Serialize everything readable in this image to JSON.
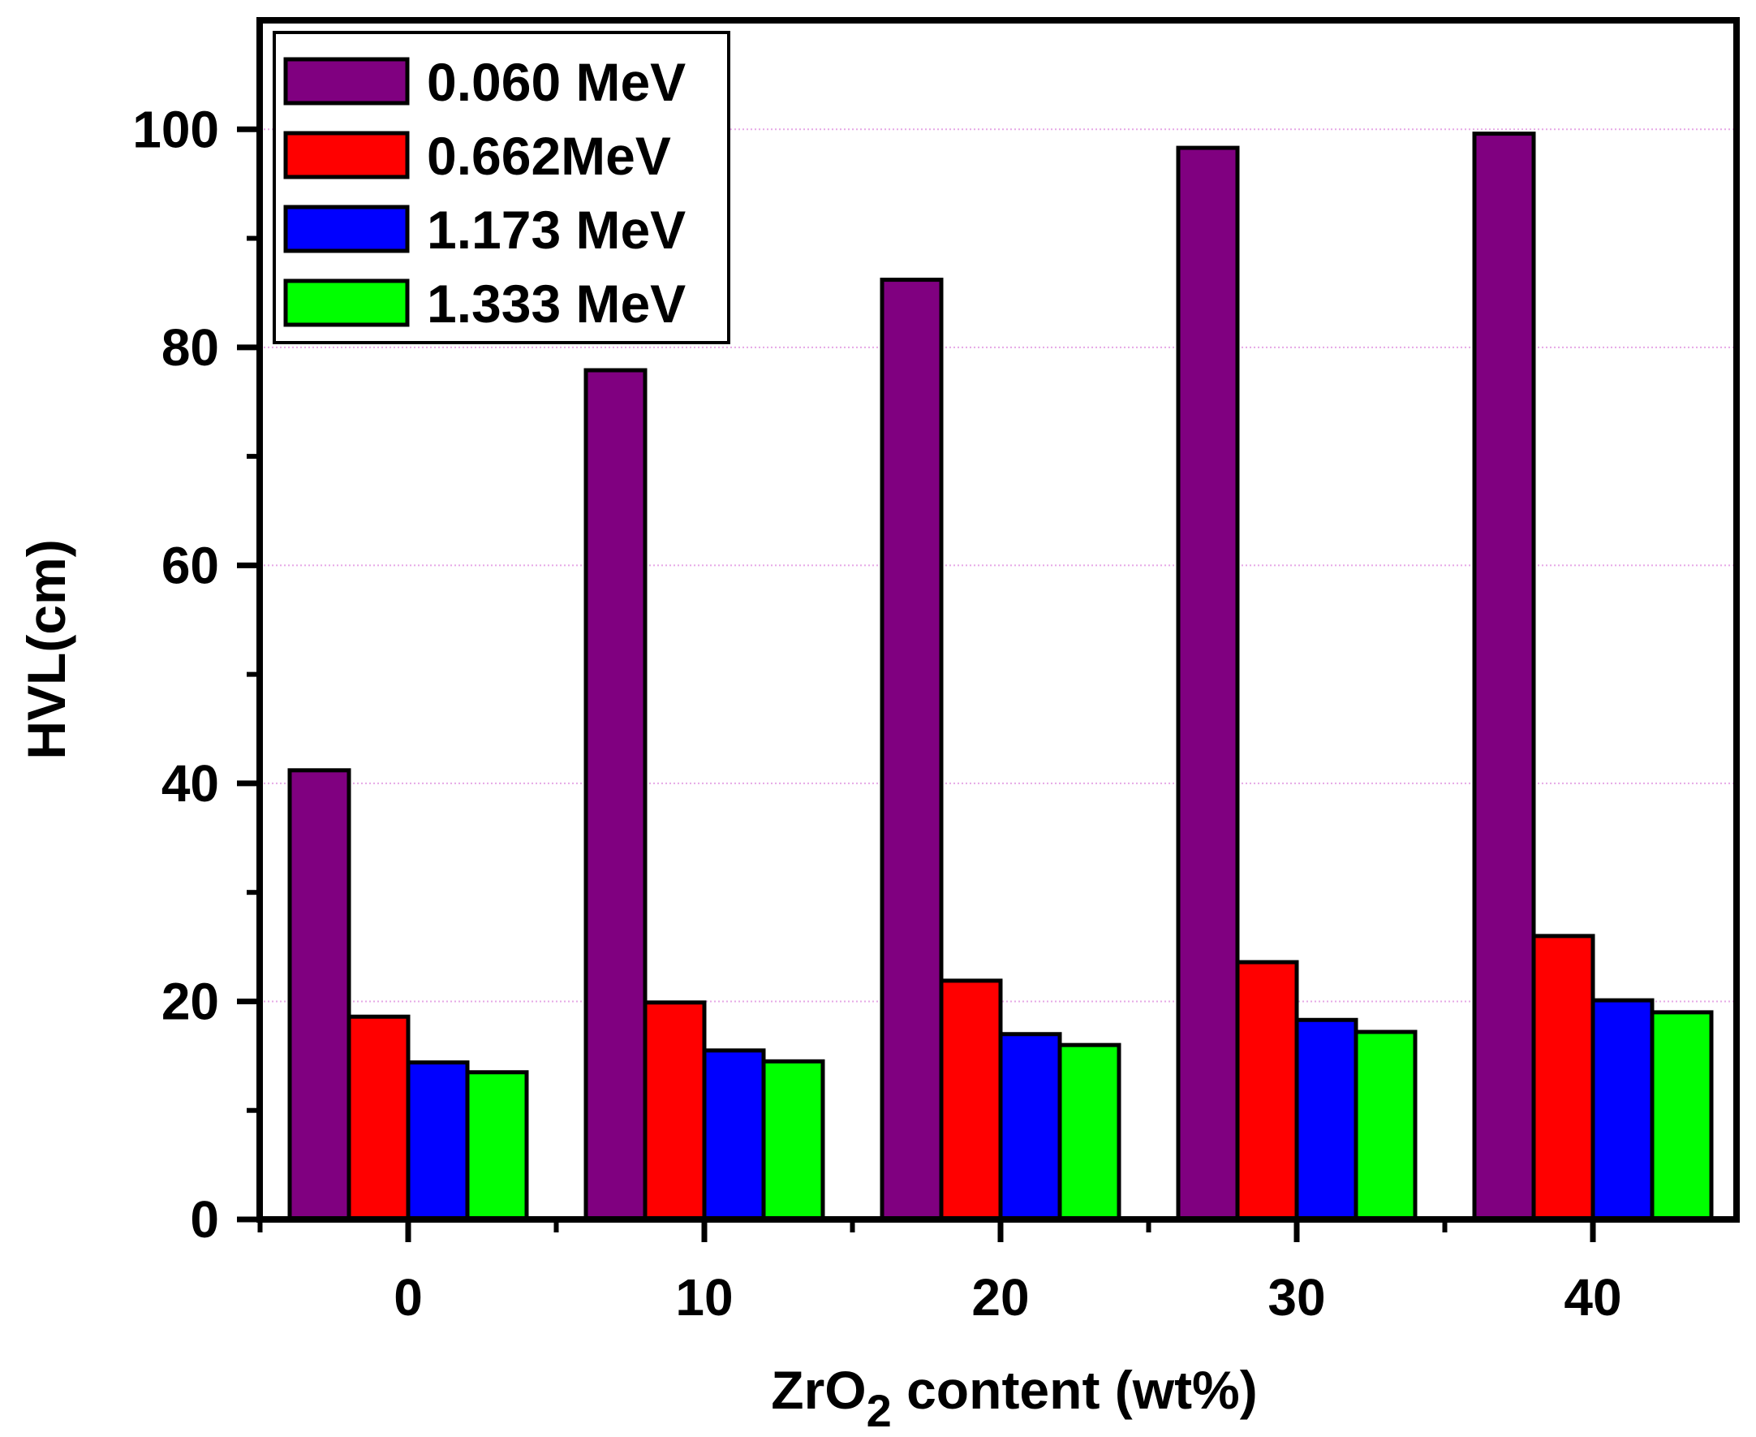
{
  "chart_data": {
    "type": "bar",
    "categories": [
      "0",
      "10",
      "20",
      "30",
      "40"
    ],
    "series": [
      {
        "name": "0.060 MeV",
        "color": "#800080",
        "values": [
          41.2,
          77.9,
          86.2,
          98.3,
          99.6
        ]
      },
      {
        "name": "0.662MeV",
        "color": "#ff0000",
        "values": [
          18.6,
          19.9,
          21.9,
          23.6,
          26.0
        ]
      },
      {
        "name": "1.173 MeV",
        "color": "#0000ff",
        "values": [
          14.4,
          15.5,
          17.0,
          18.3,
          20.1
        ]
      },
      {
        "name": "1.333 MeV",
        "color": "#00ff00",
        "values": [
          13.5,
          14.5,
          16.0,
          17.2,
          19.0
        ]
      }
    ],
    "xlabel": {
      "main": "ZrO",
      "sub": "2",
      "rest": " content (wt%)"
    },
    "ylabel": "HVL(cm)",
    "ylim": [
      0,
      110
    ],
    "yticks": [
      0,
      20,
      40,
      60,
      80,
      100
    ],
    "grid": true,
    "grid_color": "#e6a8e6",
    "legend_position": "top-left"
  }
}
